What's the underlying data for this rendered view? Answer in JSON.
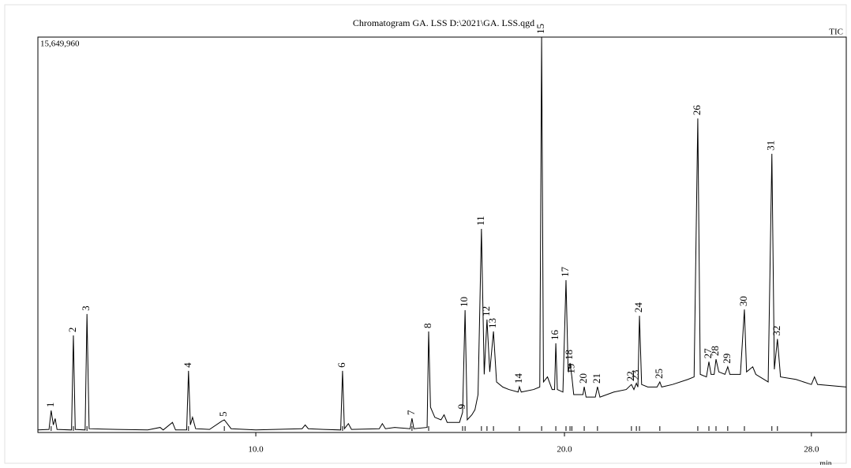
{
  "chart_data": {
    "type": "line",
    "title": "Chromatogram GA. LSS D:\\2021\\GA. LSS.qgd",
    "signal_label": "TIC",
    "xlabel": "min",
    "color": "#000000",
    "xlim": [
      2.94,
      29.13
    ],
    "ylim": [
      0,
      15649960
    ],
    "xticks": [
      {
        "value": 10,
        "label": "10.0"
      },
      {
        "value": 20,
        "label": "20.0"
      },
      {
        "value": 28,
        "label": "28.0"
      }
    ],
    "yticks": [
      {
        "value": 15649960,
        "label": "15,649,960"
      }
    ],
    "x": [
      2.94,
      3.3,
      3.37,
      3.44,
      3.5,
      3.56,
      4.03,
      4.09,
      4.15,
      4.47,
      4.53,
      4.6,
      5.5,
      6.5,
      6.9,
      7.0,
      7.3,
      7.4,
      7.76,
      7.82,
      7.88,
      7.95,
      8.05,
      8.5,
      8.9,
      8.98,
      9.2,
      10,
      11.5,
      11.6,
      11.7,
      12.2,
      12.75,
      12.81,
      12.87,
      13.0,
      13.1,
      14.0,
      14.1,
      14.2,
      14.5,
      15.0,
      15.06,
      15.12,
      15.55,
      15.6,
      15.66,
      15.8,
      16.0,
      16.1,
      16.2,
      16.6,
      16.7,
      16.78,
      16.85,
      17.0,
      17.1,
      17.2,
      17.31,
      17.4,
      17.49,
      17.58,
      17.7,
      17.8,
      18.0,
      18.2,
      18.5,
      18.54,
      18.6,
      19.0,
      19.2,
      19.26,
      19.32,
      19.45,
      19.6,
      19.68,
      19.72,
      19.77,
      19.95,
      20.05,
      20.12,
      20.18,
      20.24,
      20.3,
      20.6,
      20.64,
      20.7,
      21.0,
      21.07,
      21.15,
      21.6,
      22.0,
      22.17,
      22.25,
      22.33,
      22.38,
      22.43,
      22.5,
      22.7,
      23.0,
      23.09,
      23.15,
      23.5,
      24.0,
      24.2,
      24.32,
      24.4,
      24.6,
      24.68,
      24.75,
      24.85,
      24.91,
      25.0,
      25.2,
      25.29,
      25.36,
      25.7,
      25.83,
      25.9,
      26.1,
      26.2,
      26.6,
      26.72,
      26.8,
      26.9,
      27.0,
      27.5,
      28.0,
      28.1,
      28.2,
      29.13
    ],
    "values": [
      100000,
      120000,
      870000,
      300000,
      550000,
      120000,
      100000,
      3840000,
      120000,
      100000,
      4690000,
      150000,
      120000,
      100000,
      200000,
      100000,
      400000,
      100000,
      100000,
      2440000,
      300000,
      600000,
      150000,
      120000,
      450000,
      500000,
      150000,
      100000,
      150000,
      300000,
      150000,
      120000,
      100000,
      2440000,
      150000,
      350000,
      120000,
      150000,
      350000,
      150000,
      200000,
      150000,
      560000,
      150000,
      200000,
      4000000,
      1000000,
      600000,
      500000,
      700000,
      400000,
      400000,
      800000,
      4840000,
      500000,
      700000,
      900000,
      1500000,
      8060000,
      2300000,
      4470000,
      2400000,
      4000000,
      2000000,
      1800000,
      1700000,
      1600000,
      1810000,
      1600000,
      1700000,
      1800000,
      15650000,
      2000000,
      2200000,
      1700000,
      1700000,
      3530000,
      1700000,
      1600000,
      6030000,
      2400000,
      2750000,
      2200000,
      1500000,
      1500000,
      1810000,
      1400000,
      1400000,
      1810000,
      1400000,
      1600000,
      1700000,
      1900000,
      1700000,
      1950000,
      1800000,
      4620000,
      1900000,
      1800000,
      1800000,
      2000000,
      1800000,
      1900000,
      2100000,
      2200000,
      12430000,
      2300000,
      2200000,
      2800000,
      2300000,
      2300000,
      2900000,
      2400000,
      2300000,
      2600000,
      2300000,
      2300000,
      4870000,
      2400000,
      2600000,
      2300000,
      2000000,
      11030000,
      2500000,
      3700000,
      2200000,
      2100000,
      1900000,
      2200000,
      1900000,
      1800000
    ],
    "peaks": [
      {
        "label": "1",
        "x": 3.37
      },
      {
        "label": "2",
        "x": 4.09
      },
      {
        "label": "3",
        "x": 4.53
      },
      {
        "label": "4",
        "x": 7.82
      },
      {
        "label": "5",
        "x": 8.98
      },
      {
        "label": "6",
        "x": 12.81
      },
      {
        "label": "7",
        "x": 15.06
      },
      {
        "label": "8",
        "x": 15.6
      },
      {
        "label": "9",
        "x": 16.7
      },
      {
        "label": "10",
        "x": 16.78
      },
      {
        "label": "11",
        "x": 17.31
      },
      {
        "label": "12",
        "x": 17.49
      },
      {
        "label": "13",
        "x": 17.7
      },
      {
        "label": "14",
        "x": 18.54
      },
      {
        "label": "15",
        "x": 19.26
      },
      {
        "label": "16",
        "x": 19.72
      },
      {
        "label": "17",
        "x": 20.05
      },
      {
        "label": "18",
        "x": 20.18
      },
      {
        "label": "19",
        "x": 20.24
      },
      {
        "label": "20",
        "x": 20.64
      },
      {
        "label": "21",
        "x": 21.07
      },
      {
        "label": "22",
        "x": 22.17
      },
      {
        "label": "23",
        "x": 22.33
      },
      {
        "label": "24",
        "x": 22.43
      },
      {
        "label": "25",
        "x": 23.09
      },
      {
        "label": "26",
        "x": 24.32
      },
      {
        "label": "27",
        "x": 24.68
      },
      {
        "label": "28",
        "x": 24.91
      },
      {
        "label": "29",
        "x": 25.29
      },
      {
        "label": "30",
        "x": 25.83
      },
      {
        "label": "31",
        "x": 26.72
      },
      {
        "label": "32",
        "x": 26.9
      }
    ]
  }
}
